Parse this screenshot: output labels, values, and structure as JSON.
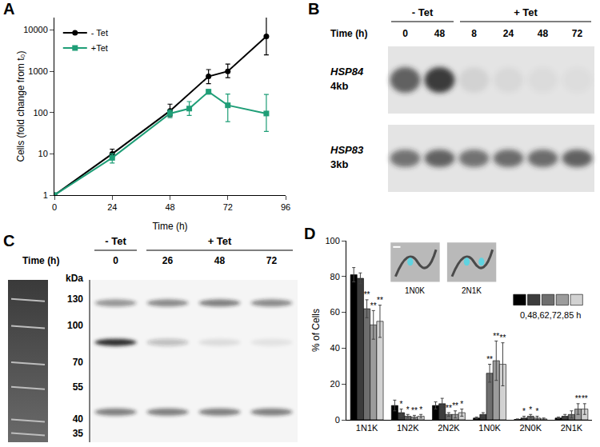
{
  "chart_data": [
    {
      "panel": "A",
      "type": "line",
      "xlabel": "Time (h)",
      "ylabel": "Cells (fold change from t₀)",
      "xlim": [
        0,
        96
      ],
      "xticks": [
        0,
        24,
        48,
        72,
        96
      ],
      "ylim": [
        1,
        20000
      ],
      "yticks": [
        1,
        10,
        100,
        1000,
        10000
      ],
      "log": "y",
      "legend": "upper left",
      "series": [
        {
          "name": "- Tet",
          "color": "#000000",
          "marker": "circle",
          "x": [
            0,
            24,
            48,
            64,
            72,
            88
          ],
          "values": [
            1,
            10,
            110,
            750,
            1000,
            7000
          ],
          "error_plus": [
            0,
            3,
            50,
            350,
            500,
            15000
          ],
          "error_minus": [
            0,
            2,
            30,
            250,
            300,
            4500
          ]
        },
        {
          "name": "+Tet",
          "color": "#1f9e77",
          "marker": "square",
          "x": [
            0,
            24,
            48,
            56,
            64,
            72,
            88
          ],
          "values": [
            1,
            8,
            95,
            125,
            320,
            150,
            95
          ],
          "error_plus": [
            0,
            2,
            20,
            60,
            40,
            130,
            180
          ],
          "error_minus": [
            0,
            2,
            20,
            40,
            40,
            90,
            60
          ]
        }
      ]
    },
    {
      "panel": "D",
      "type": "bar",
      "ylabel": "% of Cells",
      "categories": [
        "1N1K",
        "1N2K",
        "2N2K",
        "1N0K",
        "2N0K",
        "2N1K"
      ],
      "ylim": [
        0,
        100
      ],
      "yticks": [
        0,
        20,
        40,
        60,
        80,
        100
      ],
      "legend": "upper right",
      "legend_text": "0,48,62,72,85 h",
      "insets": [
        {
          "label": "1N0K"
        },
        {
          "label": "2N1K"
        }
      ],
      "series": [
        {
          "color": "#000000",
          "values": [
            81,
            8,
            8,
            1,
            0.2,
            1
          ],
          "errors": [
            4,
            3,
            2,
            0.5,
            0.3,
            0.5
          ],
          "significance": [
            null,
            null,
            null,
            null,
            null,
            null
          ]
        },
        {
          "color": "#3c3c3c",
          "values": [
            79,
            4,
            9,
            3,
            1,
            2
          ],
          "errors": [
            3,
            2,
            3,
            1,
            1,
            1
          ],
          "significance": [
            null,
            "*",
            null,
            null,
            "*",
            null
          ]
        },
        {
          "color": "#6e6e6e",
          "values": [
            62,
            2,
            3,
            26,
            2,
            3
          ],
          "errors": [
            5,
            1,
            1,
            5,
            1,
            2
          ],
          "significance": [
            "**",
            "*",
            "**",
            "**",
            "*",
            null
          ]
        },
        {
          "color": "#9c9c9c",
          "values": [
            53,
            1.5,
            3,
            33,
            1,
            6
          ],
          "errors": [
            8,
            1,
            2,
            11,
            1,
            3
          ],
          "significance": [
            "**",
            "**",
            "**",
            "**",
            "*",
            "**"
          ]
        },
        {
          "color": "#d2d2d2",
          "values": [
            55,
            2,
            4,
            31,
            0.5,
            6
          ],
          "errors": [
            9,
            1,
            2,
            12,
            0.5,
            3
          ],
          "significance": [
            "**",
            "*",
            "*",
            "**",
            null,
            "**"
          ]
        }
      ]
    }
  ],
  "blots": [
    {
      "panel": "B",
      "header_label": "Time (h)",
      "groups": [
        {
          "label": "- Tet",
          "lanes": [
            "0",
            "48"
          ]
        },
        {
          "label": "+ Tet",
          "lanes": [
            "8",
            "24",
            "48",
            "72"
          ]
        }
      ],
      "rows": [
        {
          "gene": "HSP84",
          "size": "4kb",
          "signal": [
            0.7,
            0.9,
            0.08,
            0.05,
            0.04,
            0.03
          ]
        },
        {
          "gene": "HSP83",
          "size": "3kb",
          "signal": [
            0.6,
            0.7,
            0.6,
            0.65,
            0.65,
            0.7
          ]
        }
      ]
    },
    {
      "panel": "C",
      "header_label": "Time (h)",
      "marker_unit": "kDa",
      "markers": [
        130,
        100,
        70,
        55,
        40,
        35
      ],
      "groups": [
        {
          "label": "- Tet",
          "lanes": [
            "0"
          ]
        },
        {
          "label": "+ Tet",
          "lanes": [
            "26",
            "48",
            "72"
          ]
        }
      ],
      "bands": [
        {
          "kda": 125,
          "signal": [
            0.45,
            0.5,
            0.55,
            0.5
          ]
        },
        {
          "kda": 85,
          "signal": [
            0.95,
            0.25,
            0.1,
            0.08
          ]
        },
        {
          "kda": 43,
          "signal": [
            0.55,
            0.55,
            0.55,
            0.55
          ]
        }
      ]
    }
  ]
}
